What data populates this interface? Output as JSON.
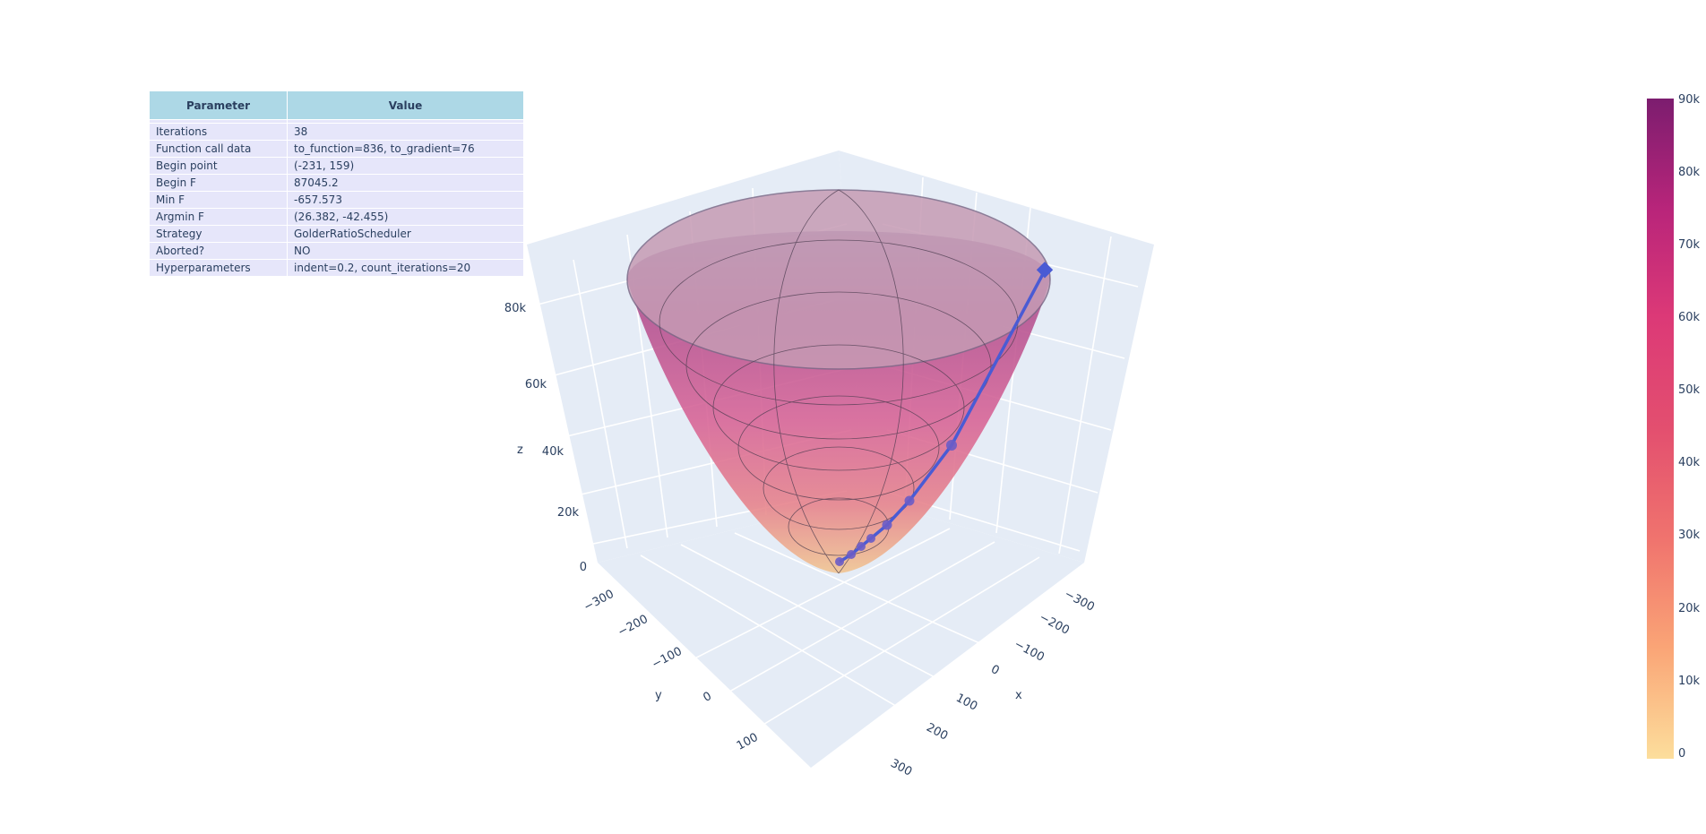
{
  "table": {
    "headers": [
      "Parameter",
      "Value"
    ],
    "rows": [
      {
        "parameter": "Iterations",
        "value": "38"
      },
      {
        "parameter": "Function call data",
        "value": "to_function=836, to_gradient=76"
      },
      {
        "parameter": "Begin point",
        "value": "(-231, 159)"
      },
      {
        "parameter": "Begin F",
        "value": "87045.2"
      },
      {
        "parameter": "Min F",
        "value": "-657.573"
      },
      {
        "parameter": "Argmin F",
        "value": "(26.382, -42.455)"
      },
      {
        "parameter": "Strategy",
        "value": "GolderRatioScheduler"
      },
      {
        "parameter": "Aborted?",
        "value": "NO"
      },
      {
        "parameter": "Hyperparameters",
        "value": "indent=0.2, count_iterations=20"
      }
    ]
  },
  "chart_data": {
    "type": "surface",
    "x_title": "x",
    "y_title": "y",
    "z_title": "z",
    "x_ticks": [
      "−300",
      "−200",
      "−100",
      "0",
      "100",
      "200",
      "300"
    ],
    "y_ticks": [
      "−300",
      "−200",
      "−100",
      "0",
      "100"
    ],
    "z_ticks": [
      "0",
      "20k",
      "40k",
      "60k",
      "80k"
    ],
    "z_range": [
      0,
      90000
    ],
    "colorbar": {
      "ticks": [
        "0",
        "10k",
        "20k",
        "30k",
        "40k",
        "50k",
        "60k",
        "70k",
        "80k",
        "90k"
      ],
      "colors": [
        "#fcde9c",
        "#faa476",
        "#f0746e",
        "#e34f6f",
        "#dc3977",
        "#b9257a",
        "#7c1d6f"
      ]
    },
    "surface_colors": [
      "#f1c48f",
      "#e6818a",
      "#d76295",
      "#b44f8e",
      "#9a8bb4"
    ],
    "path": {
      "name": "",
      "color": "#4a5bd4",
      "start": {
        "x": -231,
        "y": 159,
        "z": 87045.2
      },
      "end": {
        "x": 26.382,
        "y": -42.455,
        "z": -657.573
      }
    }
  }
}
